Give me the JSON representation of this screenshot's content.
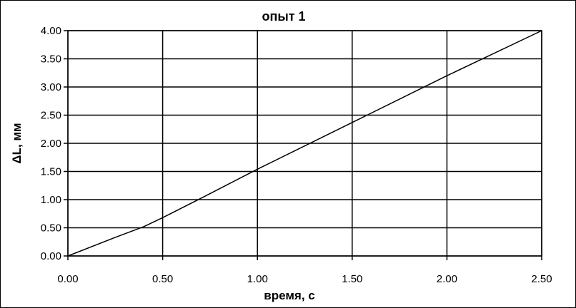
{
  "chart_data": {
    "type": "line",
    "title": "опыт 1",
    "xlabel": "время, с",
    "ylabel": "ΔL, мм",
    "xlim": [
      0,
      2.5
    ],
    "ylim": [
      0,
      4
    ],
    "xticks": [
      "0.00",
      "0.50",
      "1.00",
      "1.50",
      "2.00",
      "2.50"
    ],
    "yticks": [
      "0.00",
      "0.50",
      "1.00",
      "1.50",
      "2.00",
      "2.50",
      "3.00",
      "3.50",
      "4.00"
    ],
    "grid": true,
    "legend": "none",
    "series": [
      {
        "color": "#000000",
        "x": [
          0.0,
          0.25,
          0.4,
          0.5,
          0.7,
          1.0,
          1.5,
          2.0,
          2.5
        ],
        "y": [
          0.0,
          0.33,
          0.52,
          0.68,
          1.02,
          1.54,
          2.37,
          3.2,
          4.0
        ]
      }
    ]
  }
}
